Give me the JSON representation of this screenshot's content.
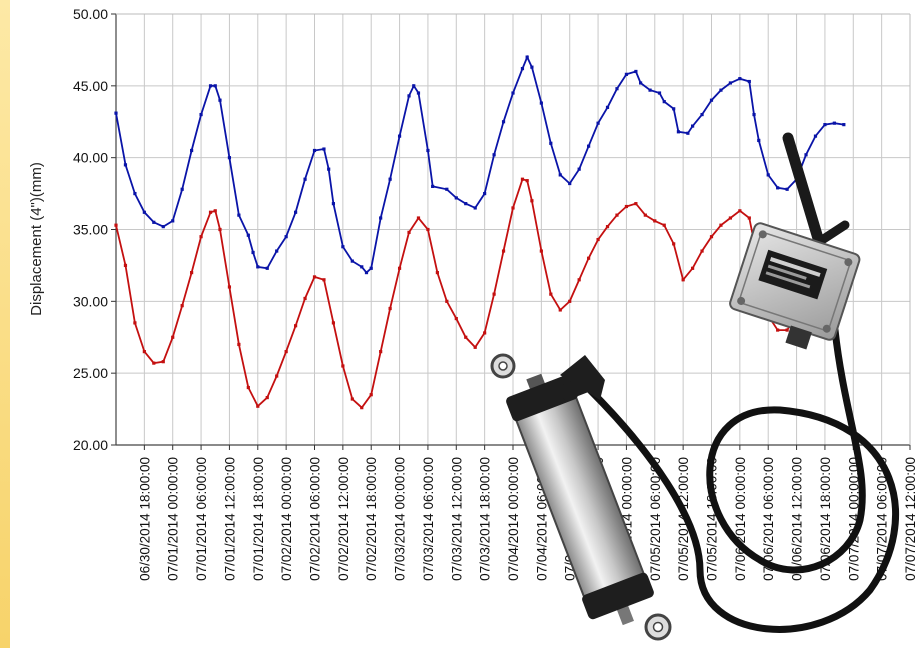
{
  "chart_data": {
    "type": "line",
    "ylabel": "Displacement (4\")(mm)",
    "xlabel": "",
    "ylim": [
      20,
      50
    ],
    "y_ticks": [
      "20.00",
      "25.00",
      "30.00",
      "35.00",
      "40.00",
      "45.00",
      "50.00"
    ],
    "grid": true,
    "x_tick_labels": [
      "06/30/2014 18:00:00",
      "07/01/2014 00:00:00",
      "07/01/2014 06:00:00",
      "07/01/2014 12:00:00",
      "07/01/2014 18:00:00",
      "07/02/2014 00:00:00",
      "07/02/2014 06:00:00",
      "07/02/2014 12:00:00",
      "07/02/2014 18:00:00",
      "07/03/2014 00:00:00",
      "07/03/2014 06:00:00",
      "07/03/2014 12:00:00",
      "07/03/2014 18:00:00",
      "07/04/2014 00:00:00",
      "07/04/2014 06:00:00",
      "07/04/2014 12:00:00",
      "07/04/2014 18:00:00",
      "07/05/2014 00:00:00",
      "07/05/2014 06:00:00",
      "07/05/2014 12:00:00",
      "07/05/2014 18:00:00",
      "07/06/2014 00:00:00",
      "07/06/2014 06:00:00",
      "07/06/2014 12:00:00",
      "07/06/2014 18:00:00",
      "07/07/2014 00:00:00",
      "07/07/2014 06:00:00",
      "07/07/2014 12:00:00"
    ],
    "x_unit": "hours after 06/30/2014 12:00",
    "x_range": [
      0,
      168
    ],
    "series": [
      {
        "color": "#0a14a8",
        "points": [
          [
            0,
            43.1
          ],
          [
            2,
            39.5
          ],
          [
            4,
            37.5
          ],
          [
            6,
            36.2
          ],
          [
            8,
            35.5
          ],
          [
            10,
            35.2
          ],
          [
            12,
            35.6
          ],
          [
            14,
            37.8
          ],
          [
            16,
            40.5
          ],
          [
            18,
            43.0
          ],
          [
            20,
            45.0
          ],
          [
            21,
            45.0
          ],
          [
            22,
            44.0
          ],
          [
            24,
            40.0
          ],
          [
            26,
            36.0
          ],
          [
            28,
            34.6
          ],
          [
            29,
            33.4
          ],
          [
            30,
            32.4
          ],
          [
            32,
            32.3
          ],
          [
            34,
            33.5
          ],
          [
            36,
            34.5
          ],
          [
            38,
            36.2
          ],
          [
            40,
            38.5
          ],
          [
            42,
            40.5
          ],
          [
            44,
            40.6
          ],
          [
            45,
            39.2
          ],
          [
            46,
            36.8
          ],
          [
            48,
            33.8
          ],
          [
            50,
            32.8
          ],
          [
            52,
            32.4
          ],
          [
            53,
            32.0
          ],
          [
            54,
            32.3
          ],
          [
            56,
            35.8
          ],
          [
            58,
            38.5
          ],
          [
            60,
            41.5
          ],
          [
            62,
            44.3
          ],
          [
            63,
            45.0
          ],
          [
            64,
            44.5
          ],
          [
            66,
            40.5
          ],
          [
            67,
            38.0
          ],
          [
            70,
            37.8
          ],
          [
            72,
            37.2
          ],
          [
            74,
            36.8
          ],
          [
            76,
            36.5
          ],
          [
            78,
            37.5
          ],
          [
            80,
            40.2
          ],
          [
            82,
            42.5
          ],
          [
            84,
            44.5
          ],
          [
            86,
            46.2
          ],
          [
            87,
            47.0
          ],
          [
            88,
            46.3
          ],
          [
            90,
            43.8
          ],
          [
            92,
            41.0
          ],
          [
            94,
            38.8
          ],
          [
            96,
            38.2
          ],
          [
            98,
            39.2
          ],
          [
            100,
            40.8
          ],
          [
            102,
            42.4
          ],
          [
            104,
            43.5
          ],
          [
            106,
            44.8
          ],
          [
            108,
            45.8
          ],
          [
            110,
            46.0
          ],
          [
            111,
            45.2
          ],
          [
            113,
            44.7
          ],
          [
            115,
            44.5
          ],
          [
            116,
            43.9
          ],
          [
            118,
            43.4
          ],
          [
            119,
            41.8
          ],
          [
            121,
            41.7
          ],
          [
            122,
            42.2
          ],
          [
            124,
            43.0
          ],
          [
            126,
            44.0
          ],
          [
            128,
            44.7
          ],
          [
            130,
            45.2
          ],
          [
            132,
            45.5
          ],
          [
            134,
            45.3
          ],
          [
            135,
            43.0
          ],
          [
            136,
            41.2
          ],
          [
            138,
            38.8
          ],
          [
            140,
            37.9
          ],
          [
            142,
            37.8
          ],
          [
            144,
            38.5
          ],
          [
            146,
            40.2
          ],
          [
            148,
            41.5
          ],
          [
            150,
            42.3
          ],
          [
            152,
            42.4
          ],
          [
            154,
            42.3
          ]
        ]
      },
      {
        "color": "#c41010",
        "points": [
          [
            0,
            35.3
          ],
          [
            2,
            32.5
          ],
          [
            4,
            28.5
          ],
          [
            6,
            26.5
          ],
          [
            8,
            25.7
          ],
          [
            10,
            25.8
          ],
          [
            12,
            27.5
          ],
          [
            14,
            29.7
          ],
          [
            16,
            32.0
          ],
          [
            18,
            34.5
          ],
          [
            20,
            36.2
          ],
          [
            21,
            36.3
          ],
          [
            22,
            35.0
          ],
          [
            24,
            31.0
          ],
          [
            26,
            27.0
          ],
          [
            28,
            24.0
          ],
          [
            30,
            22.7
          ],
          [
            32,
            23.3
          ],
          [
            34,
            24.8
          ],
          [
            36,
            26.5
          ],
          [
            38,
            28.3
          ],
          [
            40,
            30.2
          ],
          [
            42,
            31.7
          ],
          [
            44,
            31.5
          ],
          [
            46,
            28.5
          ],
          [
            48,
            25.5
          ],
          [
            50,
            23.2
          ],
          [
            52,
            22.6
          ],
          [
            54,
            23.5
          ],
          [
            56,
            26.5
          ],
          [
            58,
            29.5
          ],
          [
            60,
            32.3
          ],
          [
            62,
            34.8
          ],
          [
            64,
            35.8
          ],
          [
            66,
            35.0
          ],
          [
            68,
            32.0
          ],
          [
            70,
            30.0
          ],
          [
            72,
            28.8
          ],
          [
            74,
            27.5
          ],
          [
            76,
            26.8
          ],
          [
            78,
            27.8
          ],
          [
            80,
            30.5
          ],
          [
            82,
            33.5
          ],
          [
            84,
            36.5
          ],
          [
            86,
            38.5
          ],
          [
            87,
            38.4
          ],
          [
            88,
            37.0
          ],
          [
            90,
            33.5
          ],
          [
            92,
            30.5
          ],
          [
            94,
            29.4
          ],
          [
            96,
            30.0
          ],
          [
            98,
            31.5
          ],
          [
            100,
            33.0
          ],
          [
            102,
            34.3
          ],
          [
            104,
            35.2
          ],
          [
            106,
            36.0
          ],
          [
            108,
            36.6
          ],
          [
            110,
            36.8
          ],
          [
            112,
            36.0
          ],
          [
            114,
            35.6
          ],
          [
            116,
            35.3
          ],
          [
            118,
            34.0
          ],
          [
            120,
            31.5
          ],
          [
            122,
            32.3
          ],
          [
            124,
            33.5
          ],
          [
            126,
            34.5
          ],
          [
            128,
            35.3
          ],
          [
            130,
            35.8
          ],
          [
            132,
            36.3
          ],
          [
            134,
            35.8
          ],
          [
            136,
            32.5
          ],
          [
            138,
            29.0
          ],
          [
            140,
            28.0
          ],
          [
            142,
            28.0
          ],
          [
            144,
            29.0
          ],
          [
            146,
            31.0
          ],
          [
            148,
            32.5
          ],
          [
            150,
            33.0
          ],
          [
            152,
            33.2
          ],
          [
            154,
            32.8
          ]
        ]
      }
    ]
  }
}
